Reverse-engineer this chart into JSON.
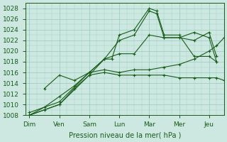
{
  "bg_color": "#cce8e0",
  "grid_color": "#9ecfc4",
  "line_color": "#1a5c1a",
  "marker_color": "#1a5c1a",
  "xlabel": "Pression niveau de la mer( hPa )",
  "ylim": [
    1008,
    1029
  ],
  "yticks": [
    1008,
    1010,
    1012,
    1014,
    1016,
    1018,
    1020,
    1022,
    1024,
    1026,
    1028
  ],
  "days": [
    "Dim",
    "Ven",
    "Sam",
    "Lun",
    "Mar",
    "Mer",
    "Jeu"
  ],
  "day_positions": [
    0,
    4,
    8,
    12,
    16,
    20,
    24
  ],
  "xlim": [
    -0.5,
    26
  ],
  "series": [
    {
      "x": [
        0,
        4,
        8,
        10,
        11,
        12,
        14,
        16,
        17,
        18,
        20,
        22,
        24,
        25
      ],
      "y": [
        1008.0,
        1010.0,
        1015.5,
        1018.5,
        1018.5,
        1023.0,
        1024.0,
        1028.0,
        1027.5,
        1023.0,
        1023.0,
        1019.0,
        1019.0,
        1018.0
      ]
    },
    {
      "x": [
        0,
        4,
        8,
        10,
        12,
        14,
        16,
        17,
        18,
        20,
        22,
        24,
        25
      ],
      "y": [
        1008.5,
        1010.5,
        1016.0,
        1018.5,
        1022.0,
        1023.0,
        1027.5,
        1027.0,
        1022.5,
        1022.5,
        1023.5,
        1022.5,
        1018.0
      ]
    },
    {
      "x": [
        2,
        4,
        6,
        8,
        10,
        12,
        14,
        16,
        18,
        20,
        22,
        24,
        25
      ],
      "y": [
        1013.0,
        1015.5,
        1014.5,
        1016.0,
        1018.5,
        1019.5,
        1019.5,
        1023.0,
        1022.5,
        1022.5,
        1022.0,
        1023.5,
        1019.0
      ]
    },
    {
      "x": [
        0,
        2,
        4,
        6,
        8,
        10,
        12,
        14,
        16,
        18,
        20,
        22,
        24,
        25,
        26
      ],
      "y": [
        1008.0,
        1009.0,
        1010.0,
        1013.0,
        1015.5,
        1016.0,
        1015.5,
        1015.5,
        1015.5,
        1015.5,
        1015.0,
        1015.0,
        1015.0,
        1015.0,
        1014.5
      ]
    },
    {
      "x": [
        0,
        2,
        4,
        6,
        8,
        10,
        12,
        14,
        16,
        18,
        20,
        22,
        24,
        25,
        26
      ],
      "y": [
        1008.0,
        1009.5,
        1011.5,
        1013.5,
        1016.0,
        1016.5,
        1016.0,
        1016.5,
        1016.5,
        1017.0,
        1017.5,
        1018.5,
        1020.0,
        1021.0,
        1022.5
      ]
    }
  ],
  "axis_fontsize": 7,
  "tick_fontsize": 6.5
}
